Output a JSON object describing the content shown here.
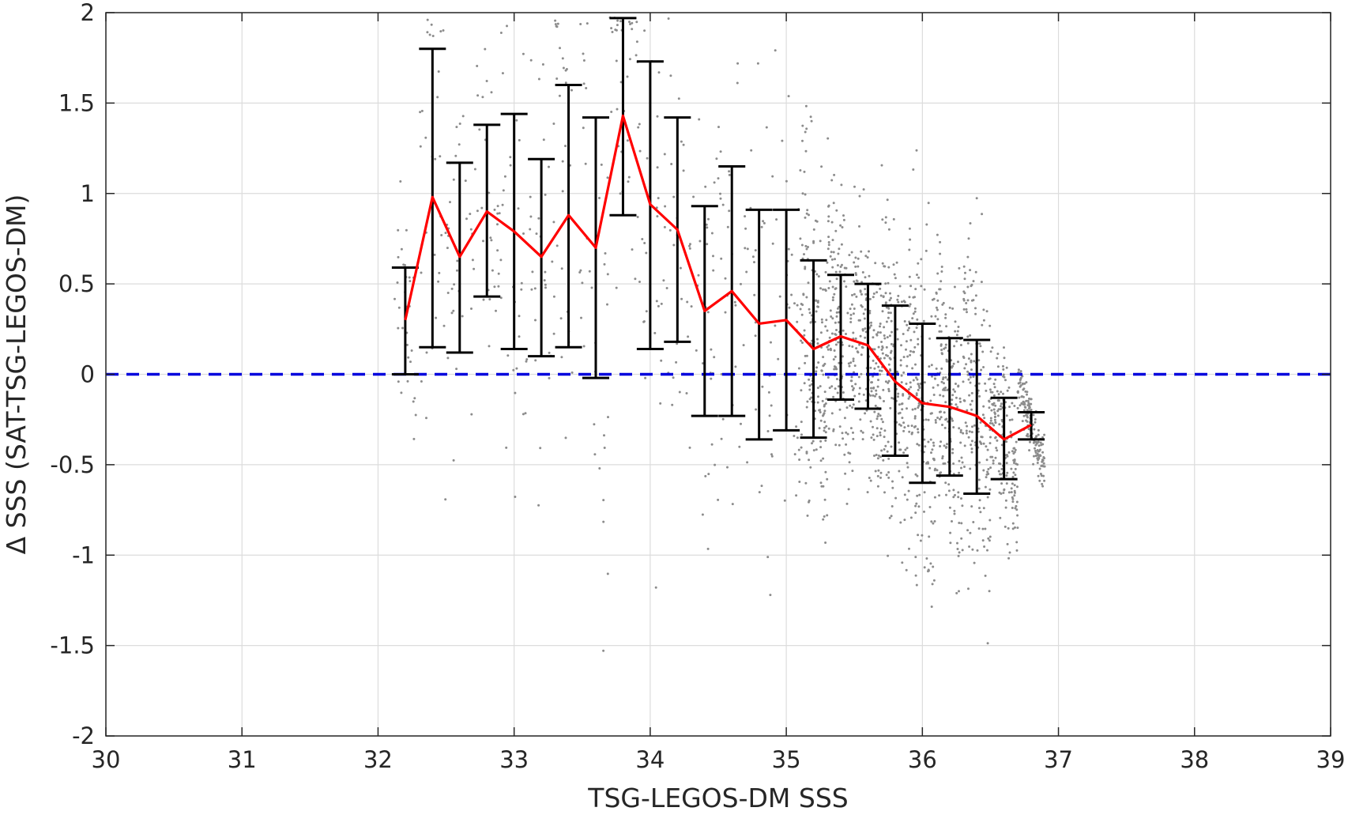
{
  "chart_data": {
    "type": "scatter",
    "xlabel": "TSG-LEGOS-DM SSS",
    "ylabel": "Δ SSS (SAT-TSG-LEGOS-DM)",
    "xlim": [
      30,
      39
    ],
    "ylim": [
      -2,
      2
    ],
    "x_ticks": [
      "30",
      "31",
      "32",
      "33",
      "34",
      "35",
      "36",
      "37",
      "38",
      "39"
    ],
    "y_ticks": [
      "2",
      "1.5",
      "1",
      "0.5",
      "0",
      "-0.5",
      "-1",
      "-1.5",
      "-2"
    ],
    "grid": true,
    "reference_line": {
      "y": 0,
      "color": "#0000dd",
      "style": "dashed"
    },
    "mean_line_color": "#ff0000",
    "errorbar_color": "#000000",
    "scatter_color": "#8c8c8c",
    "binned": {
      "x": [
        32.2,
        32.4,
        32.6,
        32.8,
        33.0,
        33.2,
        33.4,
        33.6,
        33.8,
        34.0,
        34.2,
        34.4,
        34.6,
        34.8,
        35.0,
        35.2,
        35.4,
        35.6,
        35.8,
        36.0,
        36.2,
        36.4,
        36.6,
        36.8
      ],
      "mean": [
        0.3,
        0.98,
        0.65,
        0.9,
        0.79,
        0.65,
        0.88,
        0.7,
        1.43,
        0.94,
        0.8,
        0.35,
        0.46,
        0.28,
        0.3,
        0.14,
        0.21,
        0.16,
        -0.04,
        -0.16,
        -0.18,
        -0.23,
        -0.36,
        -0.28
      ],
      "upper": [
        0.59,
        1.8,
        1.17,
        1.38,
        1.44,
        1.19,
        1.6,
        1.42,
        1.97,
        1.73,
        1.42,
        0.93,
        1.15,
        0.91,
        0.91,
        0.63,
        0.55,
        0.5,
        0.38,
        0.28,
        0.2,
        0.19,
        -0.13,
        -0.21
      ],
      "lower": [
        0.0,
        0.15,
        0.12,
        0.43,
        0.14,
        0.1,
        0.15,
        -0.02,
        0.88,
        0.14,
        0.18,
        -0.23,
        -0.23,
        -0.36,
        -0.31,
        -0.35,
        -0.14,
        -0.19,
        -0.45,
        -0.6,
        -0.56,
        -0.66,
        -0.58,
        -0.36
      ]
    }
  }
}
